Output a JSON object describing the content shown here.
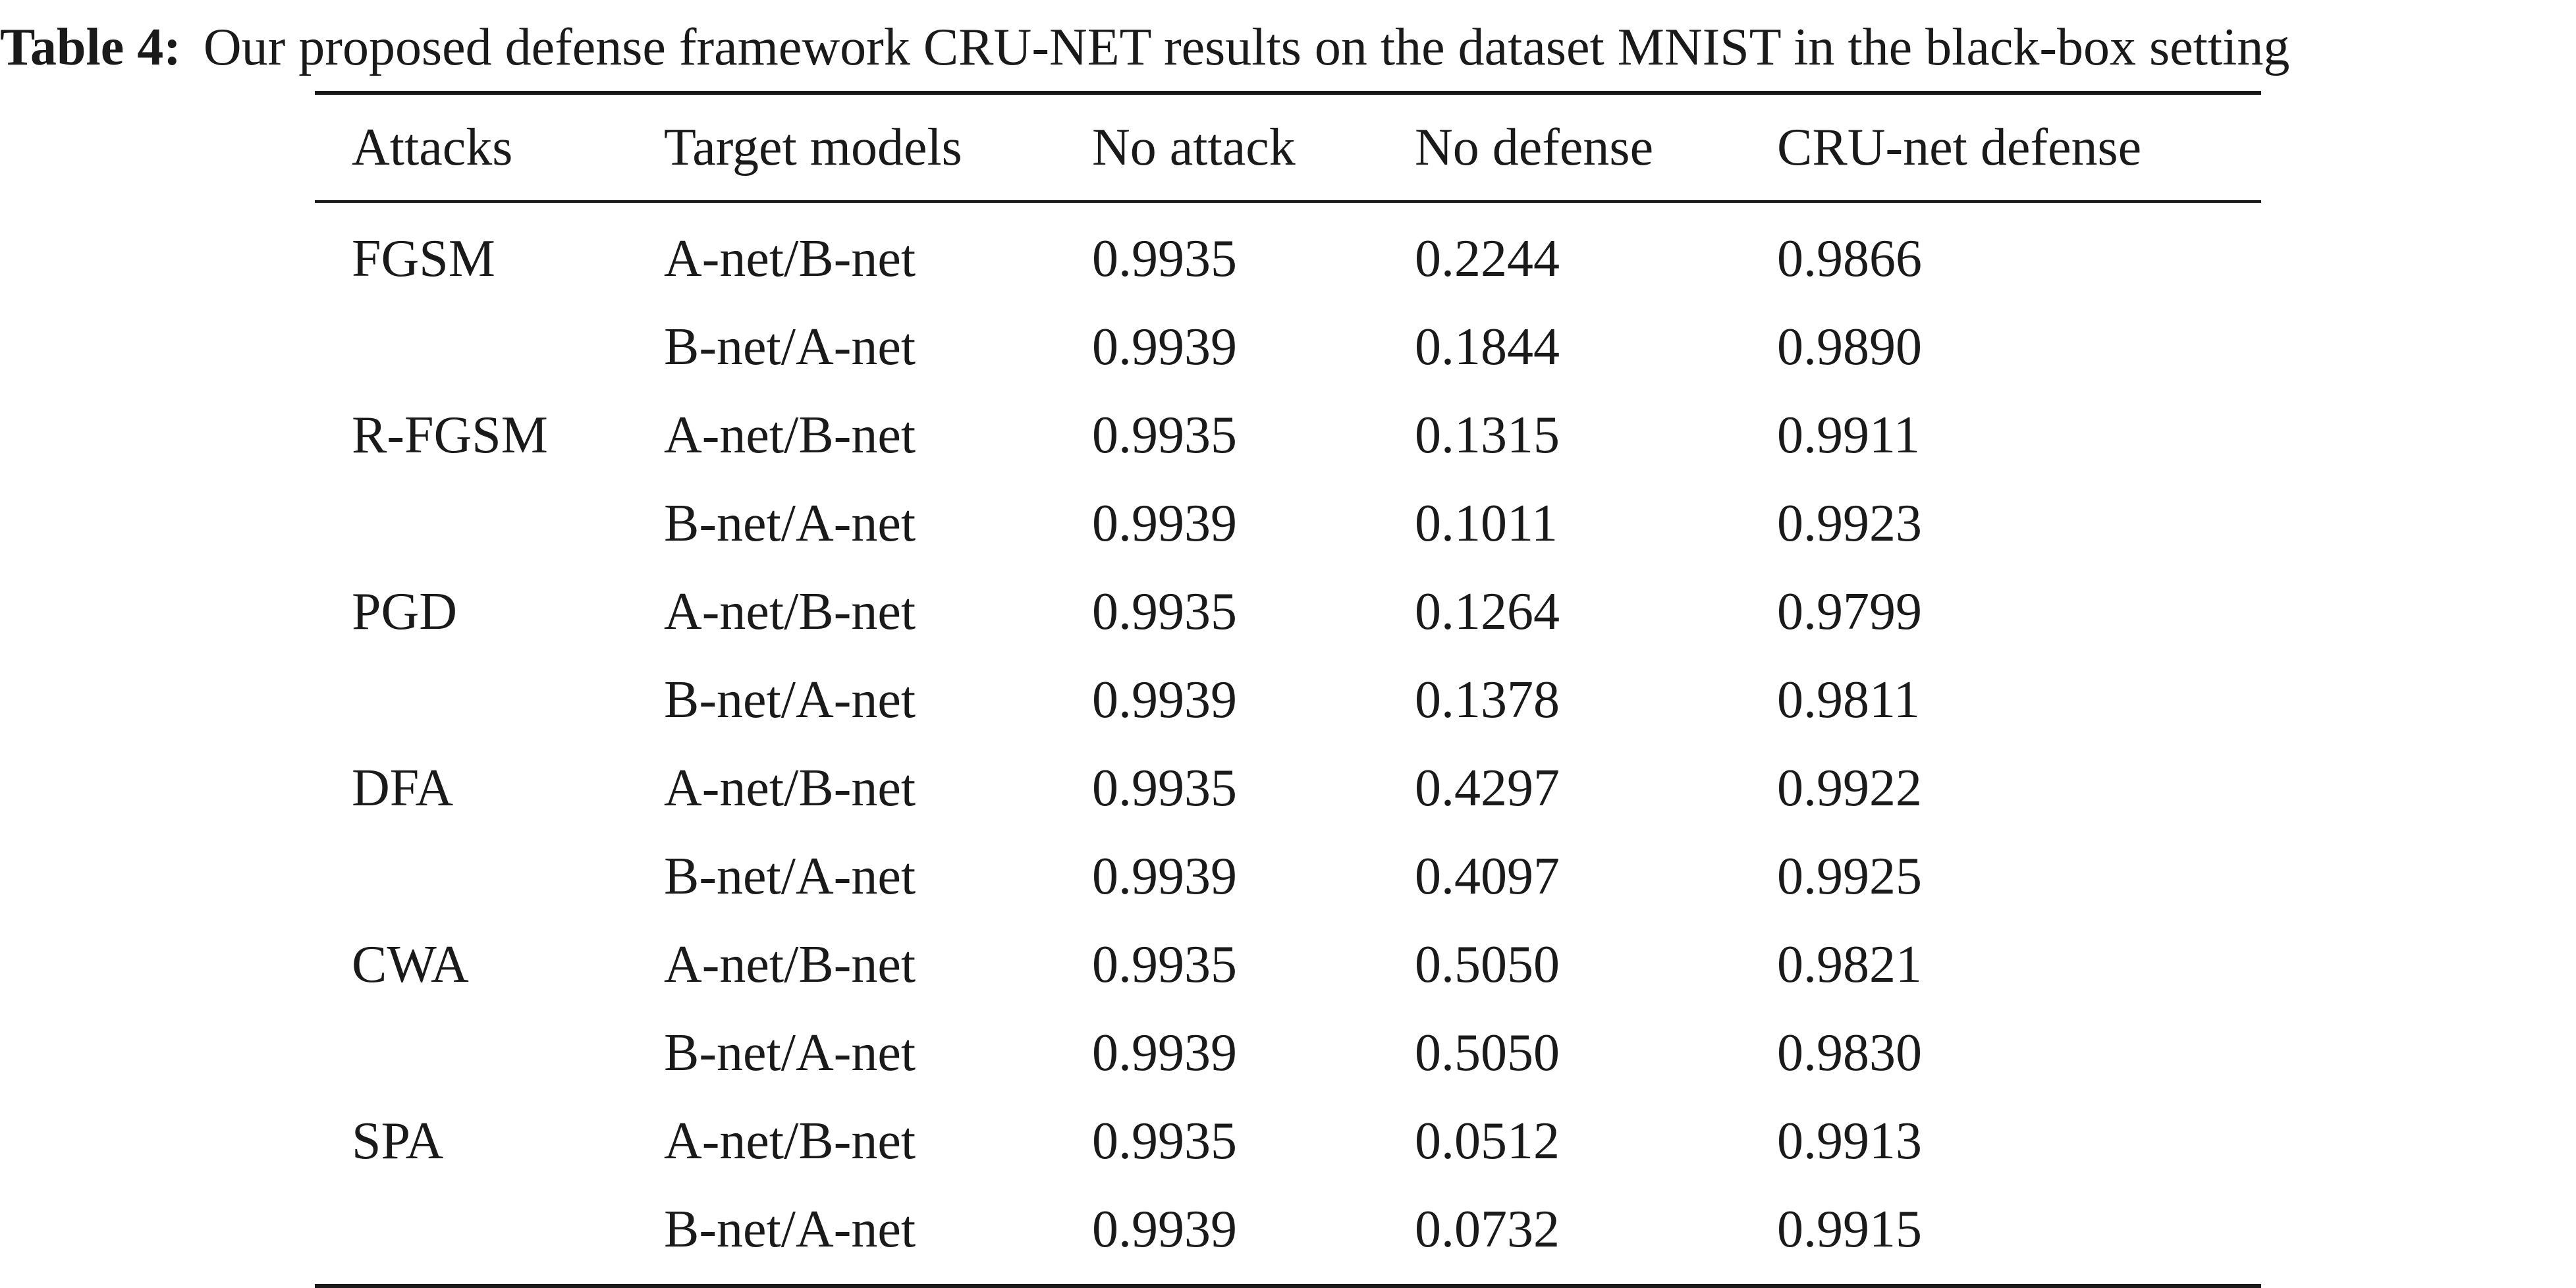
{
  "caption": {
    "label": "Table 4:",
    "text": "Our proposed defense framework CRU-NET results on the dataset MNIST in the black-box setting"
  },
  "table": {
    "headers": [
      "Attacks",
      "Target models",
      "No attack",
      "No defense",
      "CRU-net defense"
    ],
    "rows": [
      [
        "FGSM",
        "A-net/B-net",
        "0.9935",
        "0.2244",
        "0.9866"
      ],
      [
        "",
        "B-net/A-net",
        "0.9939",
        "0.1844",
        "0.9890"
      ],
      [
        "R-FGSM",
        "A-net/B-net",
        "0.9935",
        "0.1315",
        "0.9911"
      ],
      [
        "",
        "B-net/A-net",
        "0.9939",
        "0.1011",
        "0.9923"
      ],
      [
        "PGD",
        "A-net/B-net",
        "0.9935",
        "0.1264",
        "0.9799"
      ],
      [
        "",
        "B-net/A-net",
        "0.9939",
        "0.1378",
        "0.9811"
      ],
      [
        "DFA",
        "A-net/B-net",
        "0.9935",
        "0.4297",
        "0.9922"
      ],
      [
        "",
        "B-net/A-net",
        "0.9939",
        "0.4097",
        "0.9925"
      ],
      [
        "CWA",
        "A-net/B-net",
        "0.9935",
        "0.5050",
        "0.9821"
      ],
      [
        "",
        "B-net/A-net",
        "0.9939",
        "0.5050",
        "0.9830"
      ],
      [
        "SPA",
        "A-net/B-net",
        "0.9935",
        "0.0512",
        "0.9913"
      ],
      [
        "",
        "B-net/A-net",
        "0.9939",
        "0.0732",
        "0.9915"
      ]
    ]
  }
}
